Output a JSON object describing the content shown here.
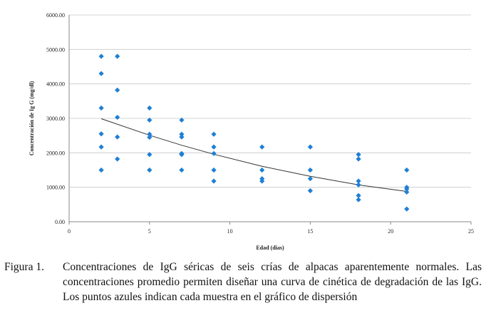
{
  "chart_data": {
    "type": "scatter",
    "xlabel": "Edad (dias)",
    "ylabel": "Concentración de Ig G (mg/dl)",
    "xlim": [
      0,
      25
    ],
    "ylim": [
      0,
      6000
    ],
    "x_ticks": [
      "0",
      "5",
      "10",
      "15",
      "20",
      "25"
    ],
    "y_ticks": [
      "0.00",
      "1000.00",
      "2000.00",
      "3000.00",
      "4000.00",
      "5000.00",
      "6000.00"
    ],
    "grid": "horizontal",
    "marker_color": "#1f7fd6",
    "trend_color": "#333333",
    "points": [
      [
        2,
        4800
      ],
      [
        2,
        4300
      ],
      [
        2,
        3300
      ],
      [
        2,
        2550
      ],
      [
        2,
        2170
      ],
      [
        2,
        1500
      ],
      [
        3,
        4800
      ],
      [
        3,
        3820
      ],
      [
        3,
        3030
      ],
      [
        3,
        2460
      ],
      [
        3,
        1820
      ],
      [
        5,
        3300
      ],
      [
        5,
        2950
      ],
      [
        5,
        2540
      ],
      [
        5,
        2450
      ],
      [
        5,
        1950
      ],
      [
        5,
        1500
      ],
      [
        7,
        2950
      ],
      [
        7,
        2540
      ],
      [
        7,
        2460
      ],
      [
        7,
        1980
      ],
      [
        7,
        1950
      ],
      [
        7,
        1500
      ],
      [
        9,
        2540
      ],
      [
        9,
        2170
      ],
      [
        9,
        1980
      ],
      [
        9,
        1500
      ],
      [
        9,
        1180
      ],
      [
        12,
        2170
      ],
      [
        12,
        1500
      ],
      [
        12,
        1250
      ],
      [
        12,
        1180
      ],
      [
        15,
        2170
      ],
      [
        15,
        1500
      ],
      [
        15,
        1250
      ],
      [
        15,
        900
      ],
      [
        18,
        1950
      ],
      [
        18,
        1820
      ],
      [
        18,
        1180
      ],
      [
        18,
        1070
      ],
      [
        18,
        760
      ],
      [
        18,
        640
      ],
      [
        21,
        1500
      ],
      [
        21,
        1000
      ],
      [
        21,
        950
      ],
      [
        21,
        860
      ],
      [
        21,
        370
      ]
    ],
    "trend": [
      [
        2,
        2990
      ],
      [
        5,
        2510
      ],
      [
        7,
        2220
      ],
      [
        9,
        1960
      ],
      [
        12,
        1610
      ],
      [
        15,
        1320
      ],
      [
        18,
        1070
      ],
      [
        21,
        880
      ]
    ]
  },
  "caption": {
    "label": "Figura 1.",
    "text": "Concentraciones de IgG séricas de seis crías de alpacas aparentemente normales. Las concentraciones promedio permiten diseñar una curva de cinética de degradación de las IgG. Los puntos azules indican cada muestra en el gráfico de dispersión"
  }
}
